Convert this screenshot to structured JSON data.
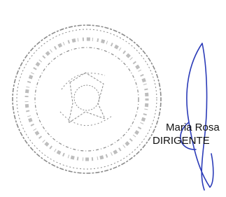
{
  "signature": {
    "name": "Maria Rosa",
    "role": "DIRIGENTE"
  }
}
